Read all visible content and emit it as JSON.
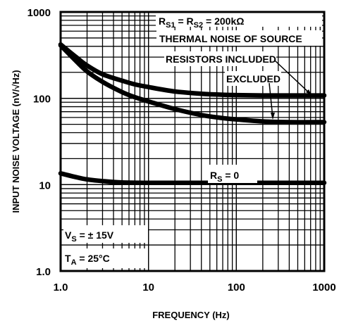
{
  "chart_data": {
    "type": "line",
    "xlabel": "FREQUENCY (Hz)",
    "ylabel": "INPUT NOISE VOLTAGE (nV/√Hz)",
    "xscale": "log",
    "yscale": "log",
    "xlim": [
      1,
      1000
    ],
    "ylim": [
      1,
      1000
    ],
    "grid": true,
    "x_ticks": [
      "1.0",
      "10",
      "100",
      "1000"
    ],
    "y_ticks": [
      "1.0",
      "10",
      "100",
      "1000"
    ],
    "series": [
      {
        "key": "included",
        "x": [
          1,
          1.5,
          2,
          3,
          5,
          7,
          10,
          20,
          40,
          70,
          100,
          200,
          500,
          1000
        ],
        "y": [
          420,
          300,
          240,
          190,
          160,
          145,
          135,
          120,
          113,
          110,
          109,
          108,
          108,
          108
        ]
      },
      {
        "key": "excluded",
        "x": [
          1,
          1.5,
          2,
          3,
          5,
          7,
          10,
          20,
          40,
          70,
          100,
          200,
          400,
          1000
        ],
        "y": [
          410,
          270,
          205,
          155,
          118,
          103,
          92,
          75,
          64,
          59,
          57,
          54,
          53,
          53
        ]
      },
      {
        "key": "rs0",
        "x": [
          1,
          1.5,
          2,
          3,
          5,
          10,
          100,
          1000
        ],
        "y": [
          13.5,
          12.2,
          11.5,
          11.0,
          10.6,
          10.5,
          10.5,
          10.5
        ]
      }
    ],
    "annotations": {
      "rs_eq_1": "R",
      "rs_eq_1_sub": "S1",
      "rs_eq_2": " = R",
      "rs_eq_2_sub": "S2",
      "rs_eq_3": " = 200kΩ",
      "thermal": "THERMAL NOISE OF SOURCE",
      "included": "RESISTORS INCLUDED",
      "excluded": "EXCLUDED",
      "rs0_main": "R",
      "rs0_sub": "S",
      "rs0_val": " = 0",
      "vs_main": "V",
      "vs_sub": "S",
      "vs_val": " = ± 15V",
      "ta_main": "T",
      "ta_sub": "A",
      "ta_val": " = 25°C"
    }
  }
}
